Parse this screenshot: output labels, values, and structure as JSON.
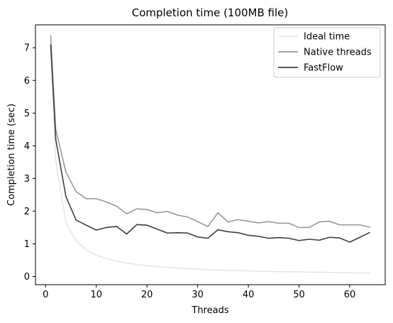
{
  "chart_data": {
    "type": "line",
    "title": "Completion time (100MB file)",
    "xlabel": "Threads",
    "ylabel": "Completion time (sec)",
    "xlim": [
      -2,
      67
    ],
    "ylim": [
      -0.25,
      7.7
    ],
    "xticks": [
      0,
      10,
      20,
      30,
      40,
      50,
      60
    ],
    "yticks": [
      0,
      1,
      2,
      3,
      4,
      5,
      6,
      7
    ],
    "grid": false,
    "legend_position": "top-right",
    "series": [
      {
        "name": "Ideal time",
        "color": "#e6e6e6",
        "x": [
          1,
          2,
          4,
          6,
          8,
          10,
          12,
          14,
          16,
          18,
          20,
          22,
          24,
          26,
          28,
          30,
          32,
          34,
          36,
          38,
          40,
          42,
          44,
          46,
          48,
          50,
          52,
          54,
          56,
          58,
          60,
          62,
          64
        ],
        "y": [
          7.1,
          3.55,
          1.65,
          1.1,
          0.82,
          0.65,
          0.55,
          0.47,
          0.41,
          0.37,
          0.33,
          0.3,
          0.28,
          0.26,
          0.24,
          0.22,
          0.21,
          0.2,
          0.19,
          0.18,
          0.17,
          0.16,
          0.155,
          0.15,
          0.145,
          0.14,
          0.135,
          0.13,
          0.125,
          0.12,
          0.115,
          0.11,
          0.105
        ]
      },
      {
        "name": "Native threads",
        "color": "#999999",
        "x": [
          1,
          2,
          4,
          6,
          8,
          10,
          12,
          14,
          16,
          18,
          20,
          22,
          24,
          26,
          28,
          30,
          32,
          34,
          36,
          38,
          40,
          42,
          44,
          46,
          48,
          50,
          52,
          54,
          56,
          58,
          60,
          62,
          64
        ],
        "y": [
          7.38,
          4.5,
          3.2,
          2.6,
          2.38,
          2.38,
          2.28,
          2.15,
          1.92,
          2.07,
          2.05,
          1.95,
          1.99,
          1.88,
          1.82,
          1.68,
          1.53,
          1.95,
          1.67,
          1.74,
          1.69,
          1.64,
          1.68,
          1.63,
          1.63,
          1.5,
          1.5,
          1.67,
          1.69,
          1.58,
          1.58,
          1.58,
          1.51
        ]
      },
      {
        "name": "FastFlow",
        "color": "#3f3f3f",
        "x": [
          1,
          2,
          4,
          6,
          8,
          10,
          12,
          14,
          16,
          18,
          20,
          22,
          24,
          26,
          28,
          30,
          32,
          34,
          36,
          38,
          40,
          42,
          44,
          46,
          48,
          50,
          52,
          54,
          56,
          58,
          60,
          62,
          64
        ],
        "y": [
          7.1,
          4.2,
          2.45,
          1.73,
          1.57,
          1.42,
          1.5,
          1.53,
          1.3,
          1.59,
          1.57,
          1.45,
          1.33,
          1.34,
          1.33,
          1.21,
          1.17,
          1.43,
          1.37,
          1.34,
          1.26,
          1.23,
          1.17,
          1.19,
          1.17,
          1.1,
          1.14,
          1.11,
          1.2,
          1.18,
          1.05,
          1.2,
          1.35
        ]
      }
    ]
  }
}
